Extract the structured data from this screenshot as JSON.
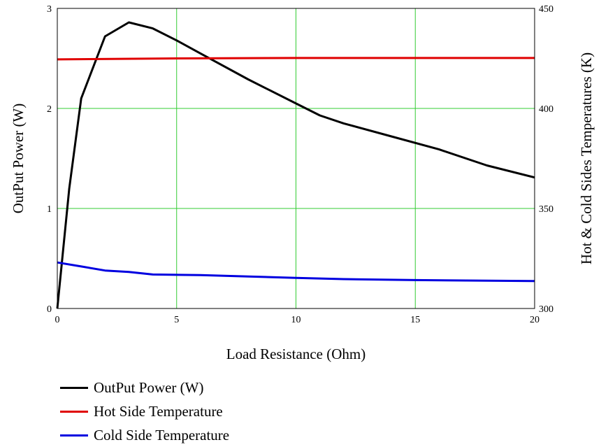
{
  "chart_data": {
    "type": "line",
    "xlabel": "Load Resistance (Ohm)",
    "ylabel": "OutPut Power (W)",
    "y2label": "Hot & Cold Sides Temperatures (K)",
    "xlim": [
      0,
      20
    ],
    "ylim": [
      0,
      3
    ],
    "y2lim": [
      300,
      450
    ],
    "x_ticks": [
      "0",
      "5",
      "10",
      "15",
      "20"
    ],
    "y_ticks": [
      "0",
      "1",
      "2",
      "3"
    ],
    "y2_ticks": [
      "300",
      "350",
      "400",
      "450"
    ],
    "grid": true,
    "legend_position": "bottom-left",
    "series": [
      {
        "name": "OutPut Power (W)",
        "color": "#000000",
        "axis": "left",
        "x": [
          0,
          0.5,
          1,
          2,
          3,
          4,
          5,
          6,
          8,
          10,
          11,
          12,
          14,
          16,
          18,
          20
        ],
        "y": [
          0,
          1.2,
          2.1,
          2.72,
          2.86,
          2.8,
          2.68,
          2.55,
          2.29,
          2.05,
          1.93,
          1.85,
          1.72,
          1.59,
          1.43,
          1.31
        ]
      },
      {
        "name": "Hot Side Temperature",
        "color": "#e00000",
        "axis": "right",
        "x": [
          0,
          5,
          10,
          15,
          20
        ],
        "y": [
          424.5,
          425,
          425.2,
          425.2,
          425.2
        ]
      },
      {
        "name": "Cold Side Temperature",
        "color": "#0000e0",
        "axis": "right",
        "x": [
          0,
          1,
          2,
          3,
          4,
          6,
          8,
          10,
          12,
          15,
          20
        ],
        "y": [
          323,
          321,
          319,
          318.3,
          317,
          316.7,
          316,
          315.3,
          314.7,
          314.2,
          313.7
        ]
      }
    ]
  },
  "colors": {
    "grid": "#33cc33",
    "frame": "#000000"
  }
}
